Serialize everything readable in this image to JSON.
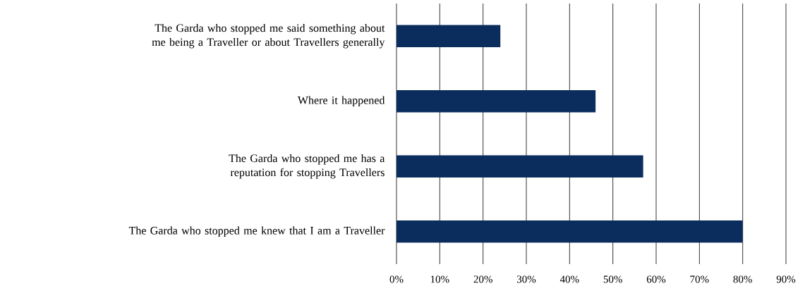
{
  "chart_data": {
    "type": "bar",
    "orientation": "horizontal",
    "categories": [
      "The Garda who stopped me said something about me being a Traveller or about Travellers generally",
      "Where it happened",
      "The Garda who stopped me has a reputation for stopping Travellers",
      "The Garda who stopped me knew that I am a Traveller"
    ],
    "values": [
      24,
      46,
      57,
      80
    ],
    "color": "#0a2d5e",
    "xlim": [
      0,
      90
    ],
    "xticks": [
      {
        "value": 0,
        "label": "0%"
      },
      {
        "value": 10,
        "label": "10%"
      },
      {
        "value": 20,
        "label": "20%"
      },
      {
        "value": 30,
        "label": "30%"
      },
      {
        "value": 40,
        "label": "40%"
      },
      {
        "value": 50,
        "label": "50%"
      },
      {
        "value": 60,
        "label": "60%"
      },
      {
        "value": 70,
        "label": "70%"
      },
      {
        "value": 80,
        "label": "80%"
      },
      {
        "value": 90,
        "label": "90%"
      }
    ],
    "grid": "x"
  }
}
